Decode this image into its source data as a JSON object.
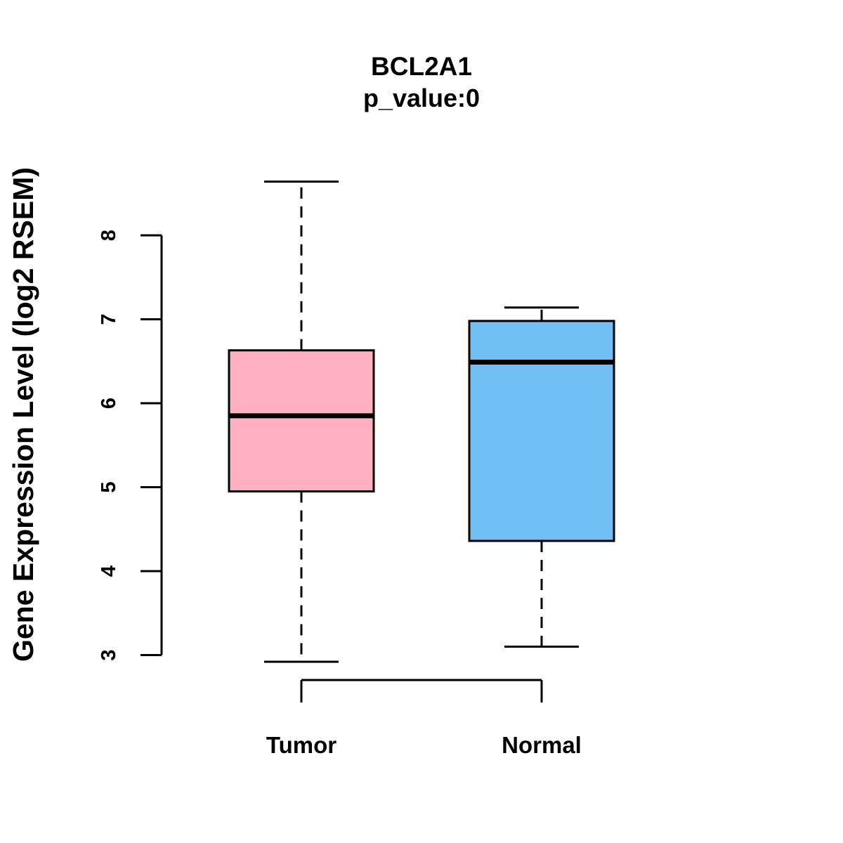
{
  "chart_data": {
    "type": "boxplot",
    "title": "BCL2A1",
    "subtitle": "p_value:0",
    "ylabel": "Gene Expression Level (log2 RSEM)",
    "xlabel": "",
    "ylim": [
      3,
      8
    ],
    "yticks": [
      3,
      4,
      5,
      6,
      7,
      8
    ],
    "grid": false,
    "legend": "none",
    "categories": [
      "Tumor",
      "Normal"
    ],
    "series": [
      {
        "name": "Tumor",
        "color": "#FFB1C1",
        "whisker_low": 2.92,
        "q1": 4.95,
        "median": 5.85,
        "q3": 6.63,
        "whisker_high": 8.64
      },
      {
        "name": "Normal",
        "color": "#74BEF6",
        "whisker_low": 3.1,
        "q1": 4.36,
        "median": 6.49,
        "q3": 6.98,
        "whisker_high": 7.14
      }
    ],
    "colors": {
      "box_border": "#000000",
      "median_line": "#000000",
      "axis": "#000000",
      "text": "#000000",
      "background": "#FFFFFF"
    },
    "style_notes": {
      "whisker_line": "dashed",
      "orientation": "vertical"
    }
  }
}
